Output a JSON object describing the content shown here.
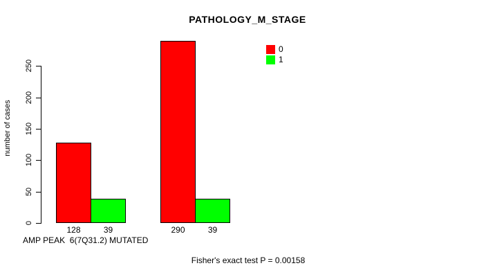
{
  "page": {
    "background_color": "#FFFFFF",
    "text_color": "#000000"
  },
  "chart_data": {
    "type": "bar",
    "title": "PATHOLOGY_M_STAGE",
    "ylabel": "number of cases",
    "xlabel": "AMP PEAK  6(7Q31.2) MUTATED",
    "footnote": "Fisher's exact test P = 0.00158",
    "yticks": [
      0,
      50,
      100,
      150,
      200,
      250
    ],
    "ylim": [
      0,
      300
    ],
    "grid": false,
    "legend_position": "top-right-inside",
    "axis_color": "#000000",
    "bar_border_color": "#000000",
    "series": [
      {
        "name": "0",
        "color": "#FF0000"
      },
      {
        "name": "1",
        "color": "#00FF00"
      }
    ],
    "groups": [
      {
        "bars": [
          {
            "series": "0",
            "value": 128,
            "label": "128"
          },
          {
            "series": "1",
            "value": 39,
            "label": "39"
          }
        ]
      },
      {
        "bars": [
          {
            "series": "0",
            "value": 290,
            "label": "290"
          },
          {
            "series": "1",
            "value": 39,
            "label": "39"
          }
        ]
      }
    ]
  }
}
